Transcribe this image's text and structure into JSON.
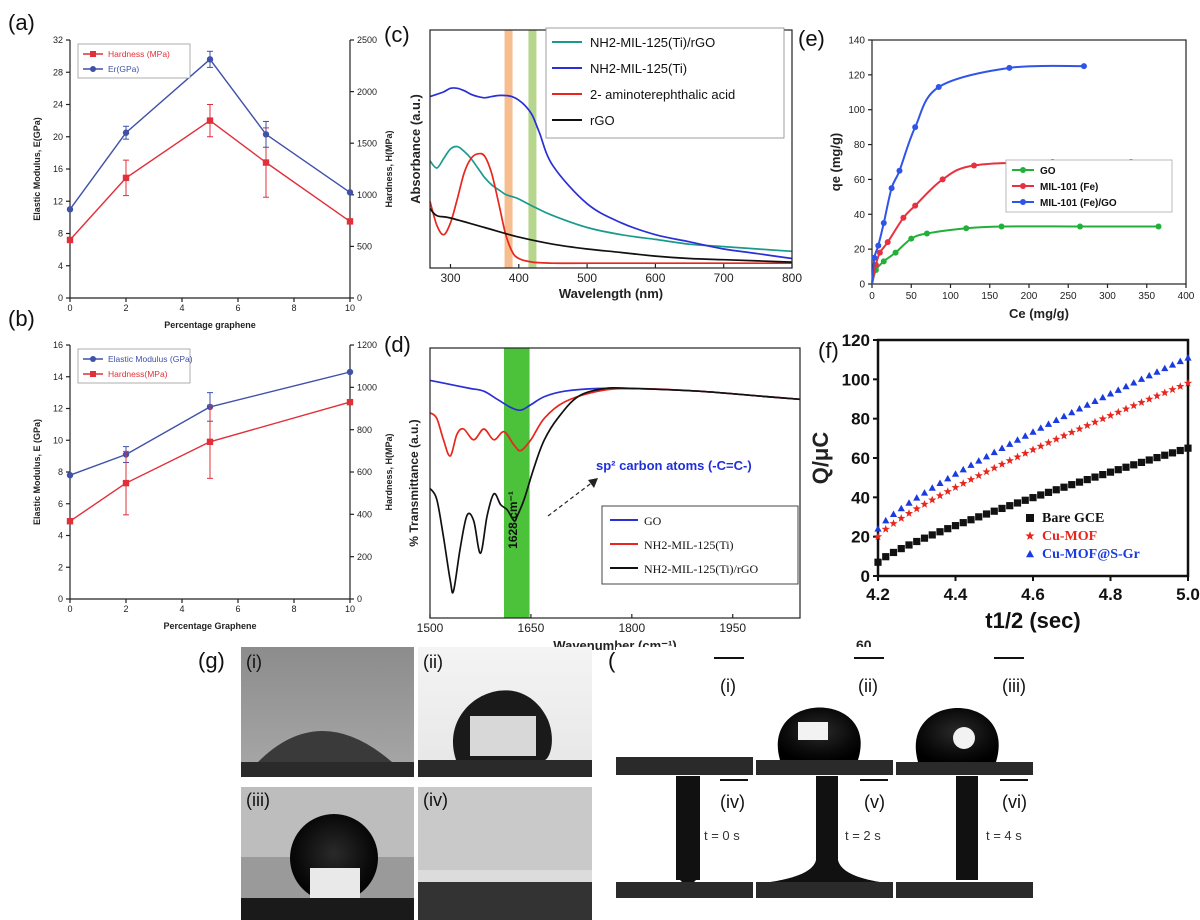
{
  "panel_labels": {
    "a": "(a)",
    "b": "(b)",
    "c": "(c)",
    "d": "(d)",
    "e": "(e)",
    "f": "(f)",
    "g": "(g)",
    "h": "(h)"
  },
  "photo_labels": {
    "g": [
      "(i)",
      "(ii)",
      "(iii)",
      "(iv)"
    ],
    "h": [
      "(i)",
      "(ii)",
      "(iii)",
      "(iv)",
      "(v)",
      "(vi)"
    ],
    "h_times": [
      "t = 0 s",
      "t = 2 s",
      "t = 4 s"
    ]
  },
  "stray_text": "60",
  "chart_data": [
    {
      "id": "a",
      "type": "line",
      "xlabel": "Percentage graphene",
      "ylabel": "Elastic Modulus, E(GPa)",
      "y2label": "Hardness, H(MPa)",
      "xlim": [
        0,
        10
      ],
      "xticks": [
        0,
        2,
        4,
        6,
        8,
        10
      ],
      "ylim": [
        0,
        32
      ],
      "yticks": [
        0,
        4,
        8,
        12,
        16,
        20,
        24,
        28,
        32
      ],
      "y2lim": [
        0,
        2500
      ],
      "y2ticks": [
        0,
        500,
        1000,
        1500,
        2000,
        2500
      ],
      "x": [
        0,
        2,
        5,
        7,
        10
      ],
      "legend_position": "top-left",
      "series": [
        {
          "name": "Hardness (MPa)",
          "color": "#e0303a",
          "marker": "square",
          "axis": "left",
          "values": [
            7.2,
            14.9,
            22.0,
            16.8,
            9.5
          ],
          "err": [
            0,
            2.2,
            2.0,
            4.3,
            0
          ]
        },
        {
          "name": "Er(GPa)",
          "color": "#3f51a8",
          "marker": "circle",
          "axis": "left",
          "values": [
            11.0,
            20.5,
            29.6,
            20.3,
            13.1
          ],
          "err": [
            0,
            0.8,
            1.0,
            1.6,
            0
          ]
        }
      ]
    },
    {
      "id": "b",
      "type": "line",
      "xlabel": "Percentage Graphene",
      "ylabel": "Elastic Modulus, E (GPa)",
      "y2label": "Hardness, H(MPa)",
      "xlim": [
        0,
        10
      ],
      "xticks": [
        0,
        2,
        4,
        6,
        8,
        10
      ],
      "ylim": [
        0,
        16
      ],
      "yticks": [
        0,
        2,
        4,
        6,
        8,
        10,
        12,
        14,
        16
      ],
      "y2lim": [
        0,
        1200
      ],
      "y2ticks": [
        0,
        200,
        400,
        600,
        800,
        1000,
        1200
      ],
      "x": [
        0,
        2,
        5,
        10
      ],
      "legend_position": "top-left",
      "series": [
        {
          "name": "Elastic Modulus (GPa)",
          "color": "#3f51a8",
          "marker": "circle",
          "axis": "left",
          "values": [
            7.8,
            9.1,
            12.1,
            14.3
          ],
          "err": [
            0,
            0.5,
            0.9,
            0
          ]
        },
        {
          "name": "Hardness(MPa)",
          "color": "#e0303a",
          "marker": "square",
          "axis": "left",
          "values": [
            4.9,
            7.3,
            9.9,
            12.4
          ],
          "err": [
            0,
            2.0,
            2.3,
            0
          ]
        }
      ]
    },
    {
      "id": "c",
      "type": "line",
      "xlabel": "Wavelength (nm)",
      "ylabel": "Absorbance (a.u.)",
      "xlim": [
        270,
        800
      ],
      "xticks": [
        300,
        400,
        500,
        600,
        700,
        800
      ],
      "ylim": [
        0,
        1
      ],
      "highlight_bands": [
        {
          "x": 385,
          "color": "#f5b27a"
        },
        {
          "x": 420,
          "color": "#a9cf7a"
        }
      ],
      "legend_position": "top-right",
      "series": [
        {
          "name": "NH2-MIL-125(Ti)/rGO",
          "color": "#1a9a8c",
          "x": [
            270,
            280,
            290,
            300,
            310,
            320,
            330,
            340,
            350,
            360,
            370,
            380,
            390,
            400,
            420,
            450,
            500,
            550,
            600,
            650,
            700,
            750,
            800
          ],
          "values": [
            0.45,
            0.42,
            0.46,
            0.5,
            0.51,
            0.49,
            0.46,
            0.42,
            0.38,
            0.35,
            0.33,
            0.31,
            0.3,
            0.29,
            0.26,
            0.22,
            0.17,
            0.14,
            0.12,
            0.1,
            0.09,
            0.08,
            0.07
          ]
        },
        {
          "name": "NH2-MIL-125(Ti)",
          "color": "#2a2fd6",
          "x": [
            270,
            280,
            290,
            300,
            310,
            320,
            330,
            340,
            350,
            360,
            370,
            380,
            390,
            400,
            410,
            420,
            430,
            450,
            500,
            550,
            600,
            650,
            700,
            750,
            800
          ],
          "values": [
            0.72,
            0.73,
            0.74,
            0.755,
            0.755,
            0.745,
            0.73,
            0.72,
            0.715,
            0.72,
            0.725,
            0.725,
            0.72,
            0.705,
            0.68,
            0.64,
            0.57,
            0.43,
            0.27,
            0.19,
            0.14,
            0.11,
            0.08,
            0.06,
            0.04
          ]
        },
        {
          "name": "2- aminoterephthalic acid",
          "color": "#e8261e",
          "x": [
            270,
            280,
            290,
            300,
            310,
            320,
            330,
            340,
            350,
            360,
            370,
            380,
            390,
            400,
            420,
            450,
            500,
            600,
            700,
            800
          ],
          "values": [
            0.28,
            0.18,
            0.14,
            0.19,
            0.29,
            0.4,
            0.46,
            0.48,
            0.47,
            0.4,
            0.28,
            0.15,
            0.07,
            0.04,
            0.025,
            0.02,
            0.02,
            0.02,
            0.02,
            0.02
          ]
        },
        {
          "name": "rGO",
          "color": "#111111",
          "x": [
            270,
            280,
            300,
            350,
            400,
            450,
            500,
            550,
            600,
            650,
            700,
            750,
            800
          ],
          "values": [
            0.25,
            0.22,
            0.21,
            0.17,
            0.13,
            0.1,
            0.08,
            0.065,
            0.05,
            0.04,
            0.035,
            0.03,
            0.025
          ]
        }
      ]
    },
    {
      "id": "d",
      "type": "line",
      "xlabel": "Wavenumber (cm⁻¹)",
      "ylabel": "% Transmittance (a.u.)",
      "xlim": [
        1500,
        2050
      ],
      "xticks": [
        1500,
        1650,
        1800,
        1950
      ],
      "ylim": [
        0,
        1
      ],
      "highlight_band": {
        "x1": 1610,
        "x2": 1648,
        "color": "#4cc23a",
        "label": "1628 cm⁻¹"
      },
      "annotation": "sp² carbon atoms (-C=C-)",
      "legend_position": "bottom-right",
      "series": [
        {
          "name": "GO",
          "color": "#2a2fd6",
          "x": [
            1500,
            1520,
            1540,
            1560,
            1580,
            1600,
            1620,
            1635,
            1650,
            1670,
            1700,
            1750,
            1800,
            1900,
            2000,
            2050
          ],
          "values": [
            0.88,
            0.87,
            0.86,
            0.85,
            0.84,
            0.81,
            0.78,
            0.77,
            0.79,
            0.82,
            0.84,
            0.85,
            0.85,
            0.84,
            0.82,
            0.81
          ]
        },
        {
          "name": "NH2-MIL-125(Ti)",
          "color": "#e8261e",
          "x": [
            1500,
            1510,
            1520,
            1530,
            1540,
            1550,
            1565,
            1580,
            1595,
            1610,
            1625,
            1635,
            1650,
            1670,
            1700,
            1750,
            1800,
            1900,
            2000,
            2050
          ],
          "values": [
            0.76,
            0.74,
            0.66,
            0.6,
            0.68,
            0.7,
            0.66,
            0.7,
            0.66,
            0.69,
            0.64,
            0.62,
            0.66,
            0.74,
            0.8,
            0.84,
            0.85,
            0.84,
            0.82,
            0.81
          ]
        },
        {
          "name": "NH2-MIL-125(Ti)/rGO",
          "color": "#111111",
          "x": [
            1500,
            1510,
            1520,
            1530,
            1535,
            1545,
            1555,
            1565,
            1575,
            1585,
            1595,
            1605,
            1615,
            1625,
            1630,
            1640,
            1655,
            1670,
            1690,
            1720,
            1760,
            1800,
            1900,
            2000,
            2050
          ],
          "values": [
            0.48,
            0.44,
            0.3,
            0.14,
            0.1,
            0.26,
            0.38,
            0.36,
            0.24,
            0.38,
            0.46,
            0.42,
            0.4,
            0.36,
            0.38,
            0.44,
            0.56,
            0.66,
            0.74,
            0.82,
            0.85,
            0.85,
            0.84,
            0.82,
            0.81
          ]
        }
      ]
    },
    {
      "id": "e",
      "type": "line",
      "xlabel": "Ce (mg/g)",
      "ylabel": "qe (mg/g)",
      "xlim": [
        0,
        400
      ],
      "xticks": [
        0,
        50,
        100,
        150,
        200,
        250,
        300,
        350,
        400
      ],
      "ylim": [
        0,
        140
      ],
      "yticks": [
        0,
        20,
        40,
        60,
        80,
        100,
        120,
        140
      ],
      "legend_position": "right",
      "series": [
        {
          "name": "GO",
          "color": "#22b03a",
          "x": [
            5,
            15,
            30,
            50,
            70,
            120,
            165,
            265,
            365
          ],
          "values": [
            8,
            13,
            18,
            26,
            29,
            32,
            33,
            33,
            33
          ]
        },
        {
          "name": "MIL-101 (Fe)",
          "color": "#e8303e",
          "x": [
            5,
            10,
            20,
            40,
            55,
            90,
            130,
            230,
            330
          ],
          "values": [
            11,
            18,
            24,
            38,
            45,
            60,
            68,
            70,
            70
          ]
        },
        {
          "name": "MIL-101 (Fe)/GO",
          "color": "#2f54e8",
          "x": [
            3,
            8,
            15,
            25,
            35,
            55,
            85,
            175,
            270
          ],
          "values": [
            15,
            22,
            35,
            55,
            65,
            90,
            113,
            124,
            125
          ]
        }
      ]
    },
    {
      "id": "f",
      "type": "scatter",
      "xlabel": "t1/2 (sec)",
      "ylabel": "Q/μC",
      "xlim": [
        4.2,
        5.0
      ],
      "xticks": [
        4.2,
        4.4,
        4.6,
        4.8,
        5.0
      ],
      "ylim": [
        0,
        120
      ],
      "yticks": [
        0,
        20,
        40,
        60,
        80,
        100,
        120
      ],
      "legend_position": "bottom-right",
      "series": [
        {
          "name": "Bare GCE",
          "color": "#111111",
          "marker": "square",
          "y_start": 7,
          "y_end": 65
        },
        {
          "name": "Cu-MOF",
          "color": "#e8261e",
          "marker": "star",
          "y_start": 20,
          "y_end": 98
        },
        {
          "name": "Cu-MOF@S-Gr",
          "color": "#1a3be0",
          "marker": "triangle",
          "y_start": 24,
          "y_end": 111
        }
      ]
    }
  ]
}
